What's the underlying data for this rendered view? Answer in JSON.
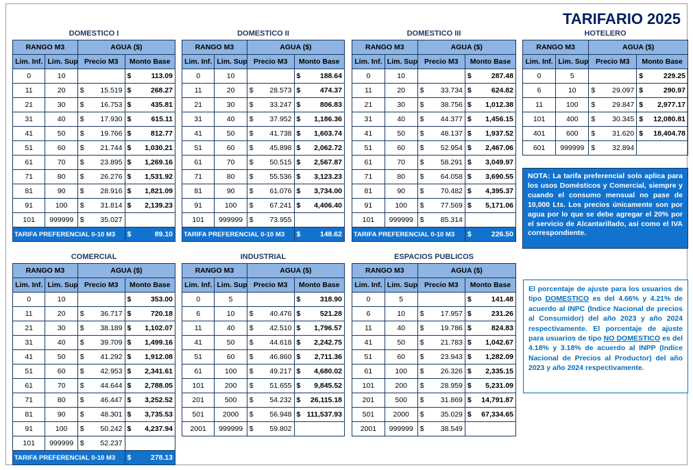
{
  "page_title": "TARIFARIO 2025",
  "colors": {
    "title": "#002060",
    "table_border": "#17375E",
    "header_bg": "#8DB4E2",
    "pref_bg": "#1273CE",
    "pref_text": "#FFFFFF",
    "nota_bg": "#1273CE",
    "nota_text": "#FFFFFF",
    "ajuste_text": "#0070C0",
    "ajuste_border": "#0070C0",
    "table_title": "#1F3864"
  },
  "currency_symbol": "$",
  "table_headers": {
    "rango": "RANGO M3",
    "agua": "AGUA ($)",
    "lim_inf": "Lim. Inf.",
    "lim_sup": "Lim. Sup.",
    "precio": "Precio M3",
    "monto": "Monto Base"
  },
  "preferencial_label": "TARIFA PREFERENCIAL 0-10 M3",
  "tables": [
    {
      "id": "domestico-i",
      "title": "DOMESTICO I",
      "rows": [
        [
          "0",
          "10",
          "",
          "113.09"
        ],
        [
          "11",
          "20",
          "15.519",
          "268.27"
        ],
        [
          "21",
          "30",
          "16.753",
          "435.81"
        ],
        [
          "31",
          "40",
          "17.930",
          "615.11"
        ],
        [
          "41",
          "50",
          "19.766",
          "812.77"
        ],
        [
          "51",
          "60",
          "21.744",
          "1,030.21"
        ],
        [
          "61",
          "70",
          "23.895",
          "1,269.16"
        ],
        [
          "71",
          "80",
          "26.276",
          "1,531.92"
        ],
        [
          "81",
          "90",
          "28.916",
          "1,821.09"
        ],
        [
          "91",
          "100",
          "31.814",
          "2,139.23"
        ],
        [
          "101",
          "999999",
          "35.027",
          ""
        ]
      ],
      "preferencial": "89.10"
    },
    {
      "id": "domestico-ii",
      "title": "DOMESTICO II",
      "rows": [
        [
          "0",
          "10",
          "",
          "188.64"
        ],
        [
          "11",
          "20",
          "28.573",
          "474.37"
        ],
        [
          "21",
          "30",
          "33.247",
          "806.83"
        ],
        [
          "31",
          "40",
          "37.952",
          "1,186.36"
        ],
        [
          "41",
          "50",
          "41.738",
          "1,603.74"
        ],
        [
          "51",
          "60",
          "45.898",
          "2,062.72"
        ],
        [
          "61",
          "70",
          "50.515",
          "2,567.87"
        ],
        [
          "71",
          "80",
          "55.536",
          "3,123.23"
        ],
        [
          "81",
          "90",
          "61.076",
          "3,734.00"
        ],
        [
          "91",
          "100",
          "67.241",
          "4,406.40"
        ],
        [
          "101",
          "999999",
          "73.955",
          ""
        ]
      ],
      "preferencial": "148.62"
    },
    {
      "id": "domestico-iii",
      "title": "DOMESTICO III",
      "rows": [
        [
          "0",
          "10",
          "",
          "287.48"
        ],
        [
          "11",
          "20",
          "33.734",
          "624.82"
        ],
        [
          "21",
          "30",
          "38.756",
          "1,012.38"
        ],
        [
          "31",
          "40",
          "44.377",
          "1,456.15"
        ],
        [
          "41",
          "50",
          "48.137",
          "1,937.52"
        ],
        [
          "51",
          "60",
          "52.954",
          "2,467.06"
        ],
        [
          "61",
          "70",
          "58.291",
          "3,049.97"
        ],
        [
          "71",
          "80",
          "64.058",
          "3,690.55"
        ],
        [
          "81",
          "90",
          "70.482",
          "4,395.37"
        ],
        [
          "91",
          "100",
          "77.569",
          "5,171.06"
        ],
        [
          "101",
          "999999",
          "85.314",
          ""
        ]
      ],
      "preferencial": "226.50"
    },
    {
      "id": "hotelero",
      "title": "HOTELERO",
      "rows": [
        [
          "0",
          "5",
          "",
          "229.25"
        ],
        [
          "6",
          "10",
          "29.097",
          "290.97"
        ],
        [
          "11",
          "100",
          "29.847",
          "2,977.17"
        ],
        [
          "101",
          "400",
          "30.345",
          "12,080.81"
        ],
        [
          "401",
          "600",
          "31.620",
          "18,404.78"
        ],
        [
          "601",
          "999999",
          "32.894",
          ""
        ]
      ],
      "preferencial": null
    },
    {
      "id": "comercial",
      "title": "COMERCIAL",
      "rows": [
        [
          "0",
          "10",
          "",
          "353.00"
        ],
        [
          "11",
          "20",
          "36.717",
          "720.18"
        ],
        [
          "21",
          "30",
          "38.189",
          "1,102.07"
        ],
        [
          "31",
          "40",
          "39.709",
          "1,499.16"
        ],
        [
          "41",
          "50",
          "41.292",
          "1,912.08"
        ],
        [
          "51",
          "60",
          "42.953",
          "2,341.61"
        ],
        [
          "61",
          "70",
          "44.644",
          "2,788.05"
        ],
        [
          "71",
          "80",
          "46.447",
          "3,252.52"
        ],
        [
          "81",
          "90",
          "48.301",
          "3,735.53"
        ],
        [
          "91",
          "100",
          "50.242",
          "4,237.94"
        ],
        [
          "101",
          "999999",
          "52.237",
          ""
        ]
      ],
      "preferencial": "278.13"
    },
    {
      "id": "industrial",
      "title": "INDUSTRIAL",
      "rows": [
        [
          "0",
          "5",
          "",
          "318.90"
        ],
        [
          "6",
          "10",
          "40.476",
          "521.28"
        ],
        [
          "11",
          "40",
          "42.510",
          "1,796.57"
        ],
        [
          "41",
          "50",
          "44.618",
          "2,242.75"
        ],
        [
          "51",
          "60",
          "46.860",
          "2,711.36"
        ],
        [
          "61",
          "100",
          "49.217",
          "4,680.02"
        ],
        [
          "101",
          "200",
          "51.655",
          "9,845.52"
        ],
        [
          "201",
          "500",
          "54.232",
          "26,115.18"
        ],
        [
          "501",
          "2000",
          "56.948",
          "111,537.93"
        ],
        [
          "2001",
          "999999",
          "59.802",
          ""
        ]
      ],
      "preferencial": null
    },
    {
      "id": "espacios-publicos",
      "title": "ESPACIOS PUBLICOS",
      "rows": [
        [
          "0",
          "5",
          "",
          "141.48"
        ],
        [
          "6",
          "10",
          "17.957",
          "231.26"
        ],
        [
          "11",
          "40",
          "19.786",
          "824.83"
        ],
        [
          "41",
          "50",
          "21.783",
          "1,042.67"
        ],
        [
          "51",
          "60",
          "23.943",
          "1,282.09"
        ],
        [
          "61",
          "100",
          "26.326",
          "2,335.15"
        ],
        [
          "101",
          "200",
          "28.959",
          "5,231.09"
        ],
        [
          "201",
          "500",
          "31.869",
          "14,791.87"
        ],
        [
          "501",
          "2000",
          "35.029",
          "67,334.65"
        ],
        [
          "2001",
          "999999",
          "38.549",
          ""
        ]
      ],
      "preferencial": null
    }
  ],
  "nota": {
    "text": "NOTA: La tarifa preferencial solo aplica para los usos Domésticos y Comercial, siempre y cuando el consumo mensual no pase de 10,000 Lts.  Los precios únicamente son por agua por lo que se debe agregar el 20% por el servicio de Alcantarillado, así como el IVA correspondiente."
  },
  "ajuste": {
    "segments": [
      {
        "t": "El porcentaje de ajuste para los usuarios de tipo ",
        "u": false
      },
      {
        "t": "DOMESTICO",
        "u": true
      },
      {
        "t": " es del 4.66% y 4.21% de acuerdo al INPC (Indice Nacional de precios al Consumidor) del año 2023 y año 2024 respectivamente. ",
        "u": false
      },
      {
        "t": "El porcentaje de ajuste para usuarios de tipo ",
        "u": false
      },
      {
        "t": "NO DOMESTICO",
        "u": true
      },
      {
        "t": " es del 4.18% y 3.18% de acuerdo al INPP (Indice Nacional de Precios al Productor) del año 2023 y año 2024 respectivamente.",
        "u": false
      }
    ]
  }
}
